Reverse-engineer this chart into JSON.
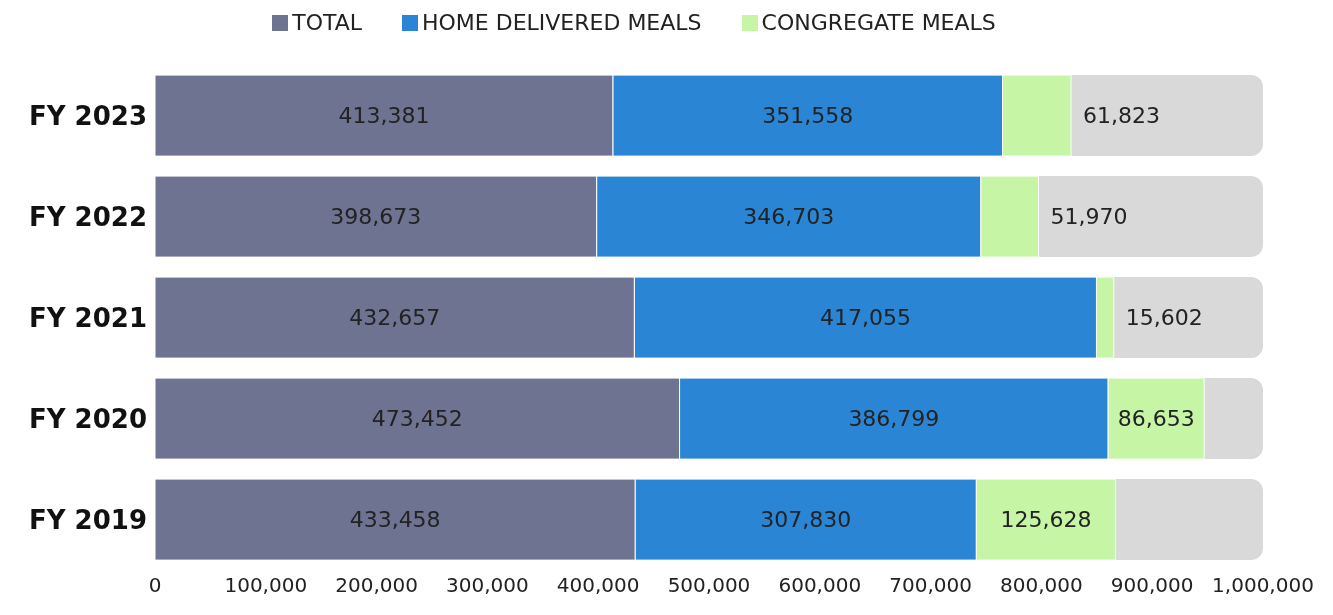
{
  "chart_data": {
    "type": "bar",
    "orientation": "horizontal",
    "stacked": true,
    "categories": [
      "FY 2023",
      "FY 2022",
      "FY 2021",
      "FY 2020",
      "FY 2019"
    ],
    "series": [
      {
        "name": "TOTAL",
        "color": "#6e7391",
        "values": [
          413381,
          398673,
          432657,
          473452,
          433458
        ],
        "value_labels": [
          "413,381",
          "398,673",
          "432,657",
          "473,452",
          "433,458"
        ]
      },
      {
        "name": "HOME DELIVERED MEALS",
        "color": "#2a86d4",
        "values": [
          351558,
          346703,
          417055,
          386799,
          307830
        ],
        "value_labels": [
          "351,558",
          "346,703",
          "417,055",
          "386,799",
          "307,830"
        ]
      },
      {
        "name": "CONGREGATE MEALS",
        "color": "#c6f5a6",
        "values": [
          61823,
          51970,
          15602,
          86653,
          125628
        ],
        "value_labels": [
          "61,823",
          "51,970",
          "15,602",
          "86,653",
          "125,628"
        ]
      }
    ],
    "xlim": [
      0,
      1000000
    ],
    "xticks": [
      0,
      {
        "value": 100000,
        "label": "100,000"
      },
      {
        "value": 200000,
        "label": "200,000"
      },
      {
        "value": 300000,
        "label": "300,000"
      },
      {
        "value": 400000,
        "label": "400,000"
      },
      {
        "value": 500000,
        "label": "500,000"
      },
      {
        "value": 600000,
        "label": "600,000"
      },
      {
        "value": 700000,
        "label": "700,000"
      },
      {
        "value": 800000,
        "label": "800,000"
      },
      {
        "value": 900000,
        "label": "900,000"
      },
      {
        "value": 1000000,
        "label": "1,000,000"
      }
    ],
    "legend": "top",
    "grid": false
  }
}
